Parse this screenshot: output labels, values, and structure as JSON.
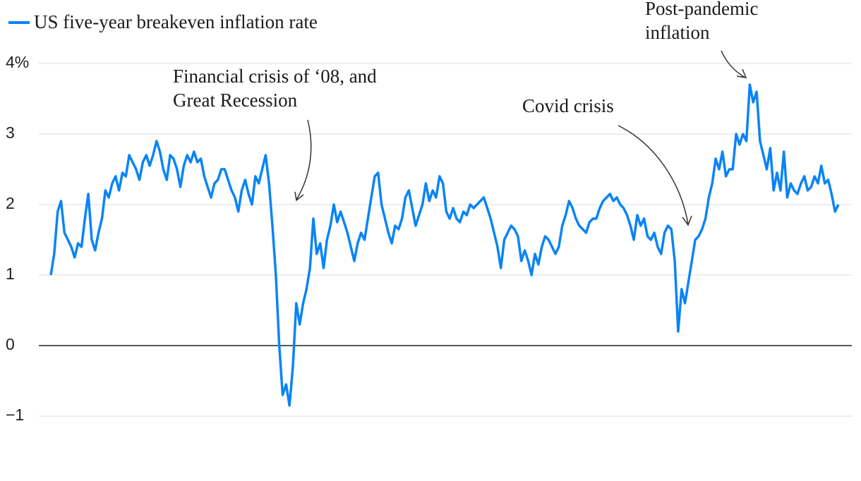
{
  "chart_data": {
    "type": "line",
    "series": [
      {
        "name": "US five-year breakeven inflation rate",
        "color": "#0a84f5",
        "values": [
          1.0,
          1.3,
          1.9,
          2.05,
          1.6,
          1.5,
          1.4,
          1.25,
          1.45,
          1.4,
          1.8,
          2.15,
          1.5,
          1.35,
          1.6,
          1.8,
          2.2,
          2.1,
          2.3,
          2.4,
          2.2,
          2.45,
          2.4,
          2.7,
          2.6,
          2.5,
          2.35,
          2.6,
          2.7,
          2.55,
          2.7,
          2.9,
          2.75,
          2.5,
          2.35,
          2.7,
          2.65,
          2.5,
          2.25,
          2.55,
          2.7,
          2.6,
          2.75,
          2.6,
          2.65,
          2.4,
          2.25,
          2.1,
          2.3,
          2.35,
          2.5,
          2.5,
          2.35,
          2.2,
          2.1,
          1.9,
          2.2,
          2.35,
          2.15,
          2.0,
          2.4,
          2.3,
          2.5,
          2.7,
          2.3,
          1.7,
          1.0,
          0.0,
          -0.7,
          -0.55,
          -0.85,
          -0.3,
          0.6,
          0.3,
          0.6,
          0.8,
          1.1,
          1.8,
          1.3,
          1.45,
          1.1,
          1.5,
          1.7,
          2.0,
          1.75,
          1.9,
          1.75,
          1.6,
          1.4,
          1.2,
          1.45,
          1.6,
          1.5,
          1.8,
          2.1,
          2.4,
          2.45,
          2.0,
          1.8,
          1.6,
          1.45,
          1.7,
          1.65,
          1.8,
          2.1,
          2.2,
          1.95,
          1.7,
          1.85,
          2.0,
          2.3,
          2.05,
          2.2,
          2.1,
          2.4,
          2.3,
          1.9,
          1.8,
          1.95,
          1.8,
          1.75,
          1.9,
          1.85,
          2.0,
          1.95,
          2.0,
          2.05,
          2.1,
          1.95,
          1.8,
          1.6,
          1.4,
          1.1,
          1.5,
          1.6,
          1.7,
          1.65,
          1.55,
          1.2,
          1.35,
          1.2,
          1.0,
          1.3,
          1.15,
          1.4,
          1.55,
          1.5,
          1.4,
          1.3,
          1.4,
          1.7,
          1.85,
          2.05,
          1.95,
          1.8,
          1.7,
          1.65,
          1.6,
          1.75,
          1.8,
          1.8,
          1.95,
          2.05,
          2.1,
          2.15,
          2.05,
          2.1,
          2.0,
          1.95,
          1.85,
          1.7,
          1.5,
          1.85,
          1.7,
          1.8,
          1.55,
          1.5,
          1.6,
          1.4,
          1.3,
          1.6,
          1.7,
          1.65,
          1.2,
          0.2,
          0.8,
          0.6,
          0.9,
          1.2,
          1.5,
          1.55,
          1.65,
          1.8,
          2.1,
          2.3,
          2.65,
          2.5,
          2.75,
          2.4,
          2.5,
          2.5,
          3.0,
          2.85,
          3.0,
          2.9,
          3.7,
          3.45,
          3.6,
          2.9,
          2.7,
          2.5,
          2.8,
          2.2,
          2.45,
          2.2,
          2.75,
          2.1,
          2.3,
          2.2,
          2.15,
          2.3,
          2.4,
          2.2,
          2.25,
          2.4,
          2.3,
          2.55,
          2.3,
          2.35,
          2.15,
          1.9,
          2.0
        ]
      }
    ],
    "ylim": [
      -1,
      4
    ],
    "yticks": [
      {
        "value": -1,
        "label": "−1"
      },
      0,
      1,
      2,
      3,
      {
        "value": 4,
        "label": "4%"
      }
    ],
    "grid": true,
    "annotations": [
      {
        "lines": [
          "Financial crisis of ‘08, and",
          "Great Recession"
        ]
      },
      {
        "lines": [
          "Covid crisis"
        ]
      },
      {
        "lines": [
          "Post-pandemic",
          "inflation"
        ]
      }
    ]
  }
}
